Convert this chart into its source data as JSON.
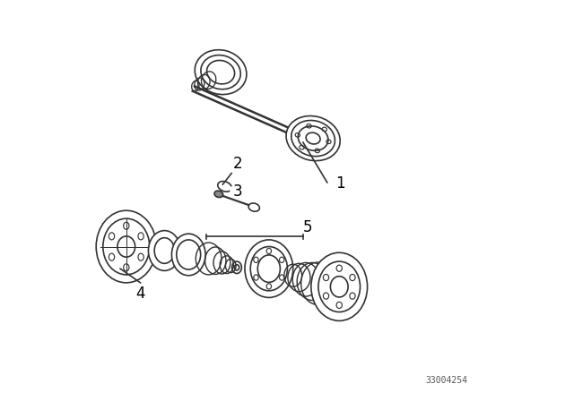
{
  "bg_color": "#ffffff",
  "line_color": "#333333",
  "label_color": "#000000",
  "watermark": "33004254",
  "lw": 1.2,
  "figsize": [
    6.4,
    4.48
  ],
  "dpi": 100
}
